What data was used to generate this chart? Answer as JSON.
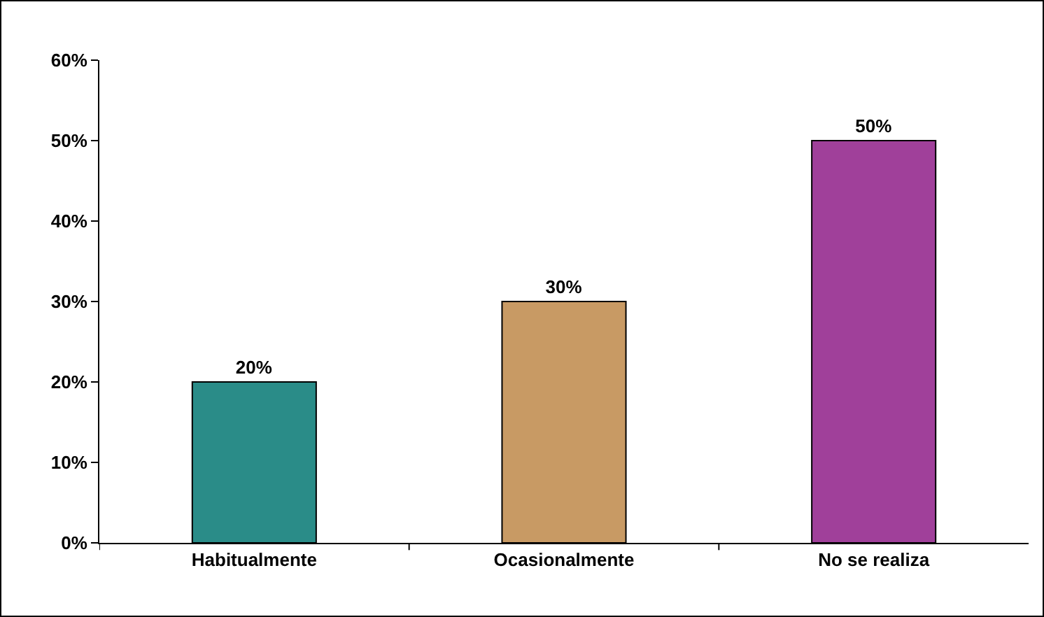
{
  "chart_data": {
    "type": "bar",
    "categories": [
      "Habitualmente",
      "Ocasionalmente",
      "No se realiza"
    ],
    "values": [
      20,
      30,
      50
    ],
    "colors": [
      "#2a8c88",
      "#c89a64",
      "#a0409a"
    ],
    "value_labels": [
      "20%",
      "30%",
      "50%"
    ],
    "ylim": [
      0,
      60
    ],
    "yticks": [
      {
        "value": 0,
        "label": "0%"
      },
      {
        "value": 10,
        "label": "10%"
      },
      {
        "value": 20,
        "label": "20%"
      },
      {
        "value": 30,
        "label": "30%"
      },
      {
        "value": 40,
        "label": "40%"
      },
      {
        "value": 50,
        "label": "50%"
      },
      {
        "value": 60,
        "label": "60%"
      }
    ],
    "grid": false
  }
}
